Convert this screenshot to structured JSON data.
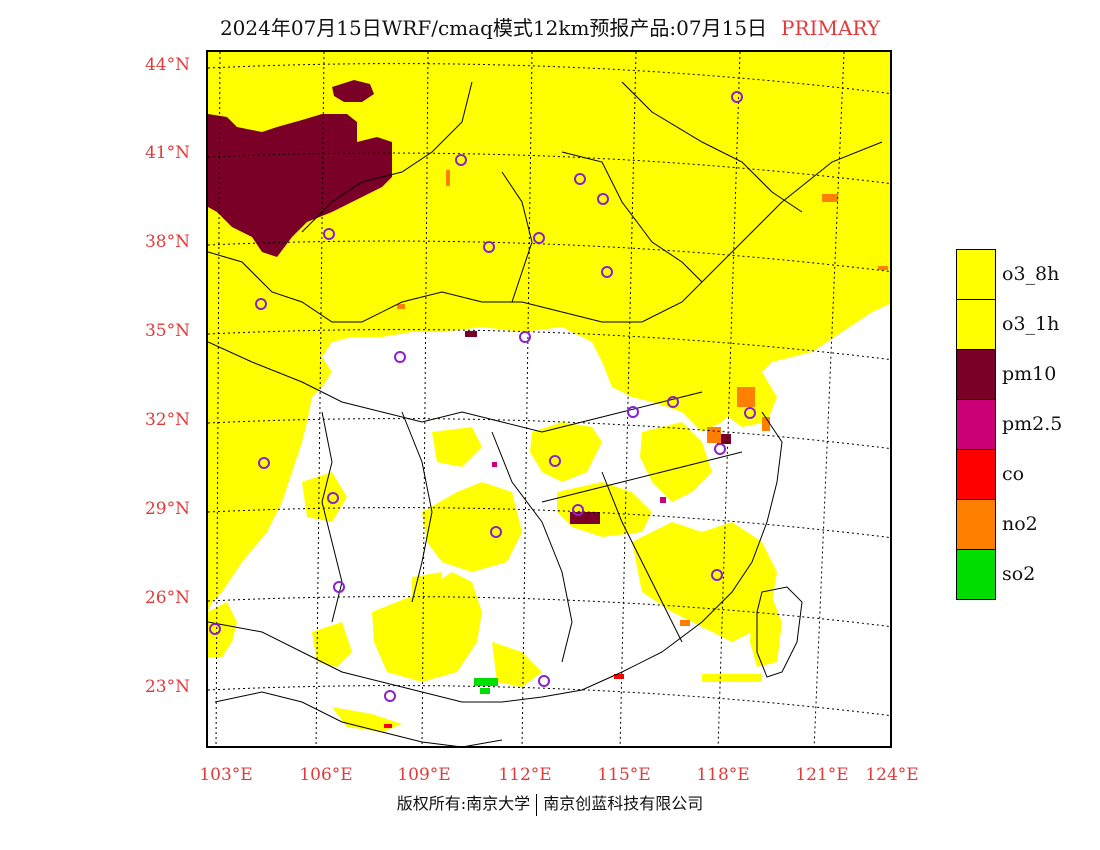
{
  "title": {
    "text": "2024年07月15日WRF/cmaq模式12km预报产品:07月15日",
    "status": "PRIMARY",
    "status_color": "#e23a3a"
  },
  "axes": {
    "lat_labels": [
      "44°N",
      "41°N",
      "38°N",
      "35°N",
      "32°N",
      "29°N",
      "26°N",
      "23°N"
    ],
    "lon_labels": [
      "103°E",
      "106°E",
      "109°E",
      "112°E",
      "115°E",
      "118°E",
      "121°E",
      "124°E"
    ],
    "label_color": "#e23a3a"
  },
  "map": {
    "description_icon": "map-canvas",
    "background_color": "#ffffff",
    "yellow": "#ffff00",
    "maroon": "#7a0028",
    "orange": "#ff7f00",
    "green": "#00dd00",
    "red": "#ff0000",
    "magenta": "#cc0077",
    "city_marker_color": "#8822cc"
  },
  "legend": {
    "items": [
      {
        "label": "o3_8h",
        "color": "#ffff00"
      },
      {
        "label": "o3_1h",
        "color": "#ffff00"
      },
      {
        "label": "pm10",
        "color": "#7a0028"
      },
      {
        "label": "pm2.5",
        "color": "#cc0077"
      },
      {
        "label": "co",
        "color": "#ff0000"
      },
      {
        "label": "no2",
        "color": "#ff7f00"
      },
      {
        "label": "so2",
        "color": "#00dd00"
      }
    ]
  },
  "footer": {
    "left": "版权所有:南京大学",
    "right": "南京创蓝科技有限公司"
  }
}
